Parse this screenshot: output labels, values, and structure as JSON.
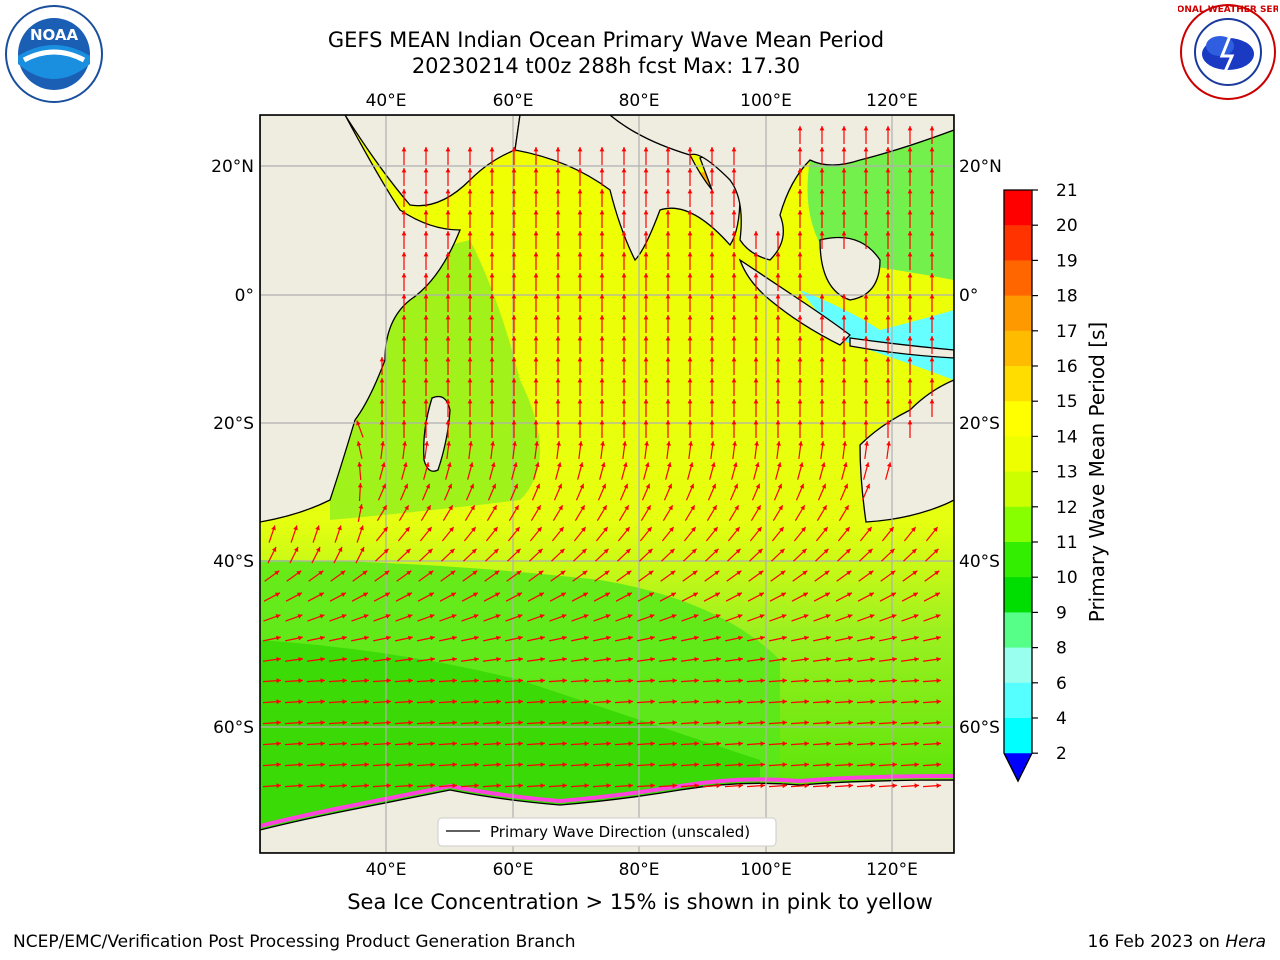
{
  "title": {
    "line1": "GEFS MEAN Indian Ocean Primary Wave Mean Period",
    "line2": "20230214 t00z 288h fcst   Max: 17.30"
  },
  "logos": {
    "left_text": "NOAA",
    "right_text": "NATIONAL WEATHER SERVICE"
  },
  "map": {
    "lon_labels": [
      "40°E",
      "60°E",
      "80°E",
      "100°E",
      "120°E"
    ],
    "lat_labels": [
      "20°N",
      "0°",
      "20°S",
      "40°S",
      "60°S"
    ],
    "legend": "Primary Wave Direction (unscaled)",
    "arrow_color": "#ff0000"
  },
  "colorbar": {
    "title": "Primary Wave Mean Period [s]",
    "ticks": [
      "21",
      "20",
      "19",
      "18",
      "17",
      "16",
      "15",
      "14",
      "13",
      "12",
      "11",
      "10",
      "9",
      "8",
      "6",
      "4",
      "2"
    ],
    "colors": [
      "#ff0000",
      "#ff3300",
      "#ff6600",
      "#ff9900",
      "#ffbb00",
      "#ffdd00",
      "#ffff00",
      "#eeff00",
      "#ccff00",
      "#88ff00",
      "#33ee00",
      "#00dd00",
      "#55ff88",
      "#99ffee",
      "#55ffff",
      "#00ffff",
      "#00aaff"
    ],
    "extend_color": "#0000ff"
  },
  "caption": "Sea Ice Concentration > 15% is shown in pink to yellow",
  "footer": {
    "left": "NCEP/EMC/Verification Post Processing Product Generation Branch",
    "right_prefix": "16 Feb 2023 on ",
    "right_machine": "Hera"
  }
}
